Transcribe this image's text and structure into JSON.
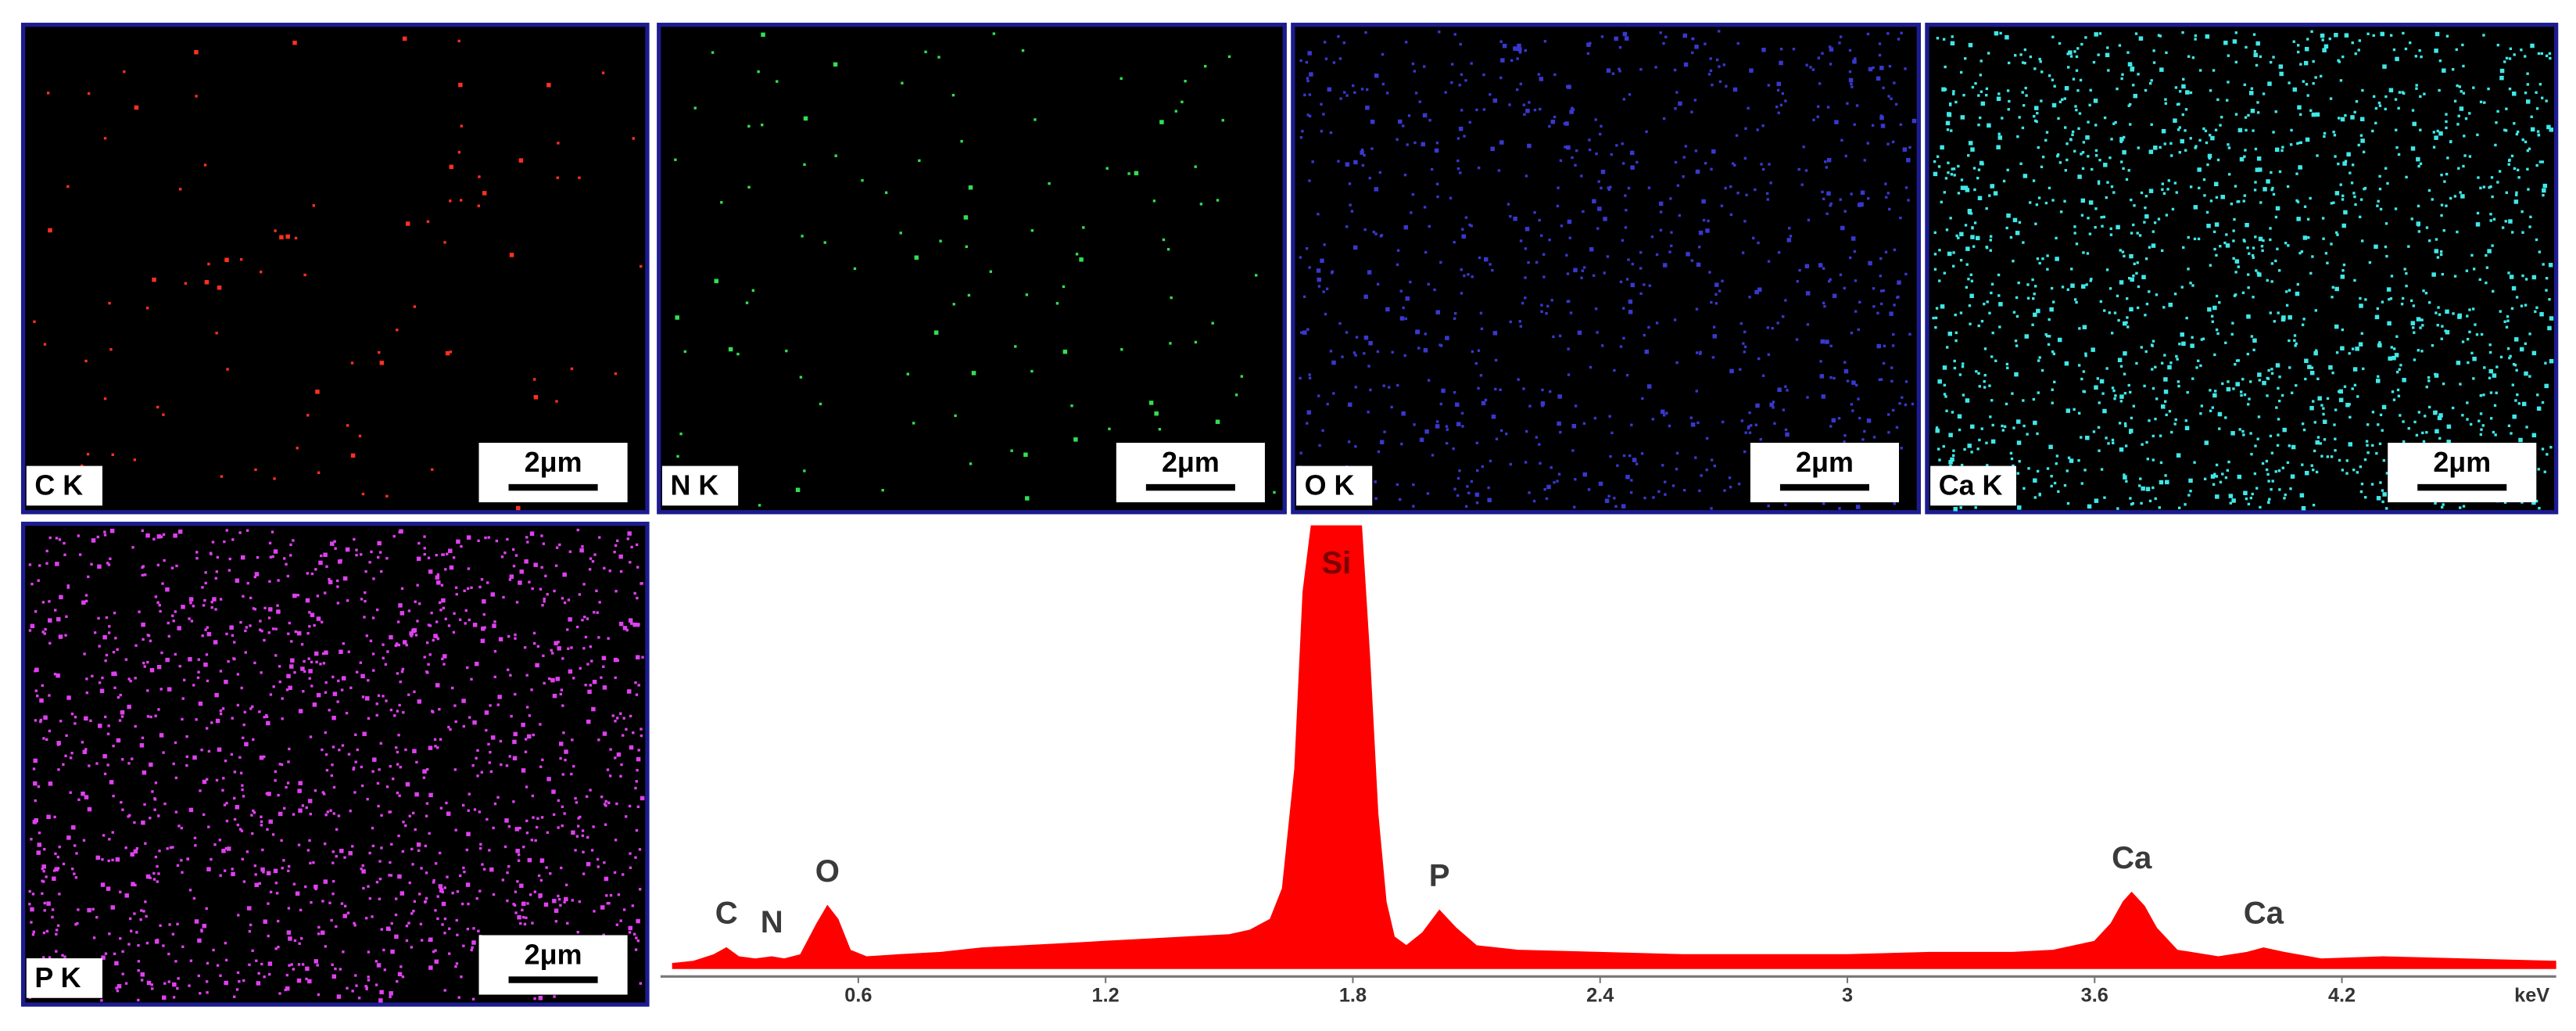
{
  "maps": [
    {
      "label": "C K",
      "color": "#ff3020"
    },
    {
      "label": "N K",
      "color": "#30e050"
    },
    {
      "label": "O K",
      "color": "#3838d0"
    },
    {
      "label": "Ca K",
      "color": "#40e8e8"
    },
    {
      "label": "P K",
      "color": "#e040f0"
    }
  ],
  "scale_bar": "2μm",
  "chart_data": {
    "type": "area",
    "color": "#ff0000",
    "xlabel": "keV",
    "xlim": [
      0.12,
      4.72
    ],
    "ylim": [
      0,
      100
    ],
    "xticks": [
      0.6,
      1.2,
      1.8,
      2.4,
      3,
      3.6,
      4.2
    ],
    "x": [
      0.15,
      0.2,
      0.25,
      0.28,
      0.31,
      0.35,
      0.39,
      0.42,
      0.46,
      0.5,
      0.525,
      0.55,
      0.58,
      0.62,
      0.7,
      0.8,
      0.9,
      1.0,
      1.1,
      1.2,
      1.3,
      1.4,
      1.5,
      1.55,
      1.6,
      1.63,
      1.66,
      1.68,
      1.7,
      1.72,
      1.74,
      1.76,
      1.78,
      1.8,
      1.82,
      1.84,
      1.86,
      1.88,
      1.9,
      1.93,
      1.97,
      2.01,
      2.05,
      2.1,
      2.2,
      2.4,
      2.6,
      2.8,
      3.0,
      3.2,
      3.4,
      3.5,
      3.6,
      3.64,
      3.67,
      3.69,
      3.72,
      3.75,
      3.8,
      3.9,
      3.97,
      4.01,
      4.06,
      4.15,
      4.3,
      4.5,
      4.72
    ],
    "values": [
      1,
      1.5,
      3,
      4.5,
      2.5,
      2,
      2.5,
      2,
      3,
      10,
      14,
      11,
      4,
      2.5,
      3,
      3.5,
      4.5,
      5,
      5.5,
      6,
      6.5,
      7,
      7.5,
      8.5,
      11,
      18,
      45,
      85,
      100,
      100,
      100,
      100,
      100,
      100,
      100,
      70,
      35,
      15,
      7,
      5,
      8,
      13,
      9,
      5,
      4,
      3.5,
      3,
      3,
      3,
      3.5,
      3.5,
      4,
      6,
      10,
      15,
      17,
      14,
      9,
      4,
      2.5,
      3.5,
      4.5,
      3.5,
      2,
      2.5,
      2,
      1.5
    ],
    "annotations": [
      {
        "text": "C",
        "x": 0.28
      },
      {
        "text": "N",
        "x": 0.39
      },
      {
        "text": "O",
        "x": 0.525
      },
      {
        "text": "Si",
        "x": 1.76
      },
      {
        "text": "P",
        "x": 2.01
      },
      {
        "text": "Ca",
        "x": 3.69
      },
      {
        "text": "Ca",
        "x": 4.01
      }
    ]
  }
}
